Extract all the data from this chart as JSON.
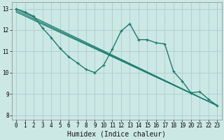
{
  "xlabel": "Humidex (Indice chaleur)",
  "bg_color": "#cce8e5",
  "grid_color": "#b0d0cd",
  "line_color": "#1a7a6e",
  "xlim": [
    -0.5,
    23.5
  ],
  "ylim": [
    7.8,
    13.3
  ],
  "xticks": [
    0,
    1,
    2,
    3,
    4,
    5,
    6,
    7,
    8,
    9,
    10,
    11,
    12,
    13,
    14,
    15,
    16,
    17,
    18,
    19,
    20,
    21,
    22,
    23
  ],
  "yticks": [
    8,
    9,
    10,
    11,
    12,
    13
  ],
  "wiggly": {
    "x": [
      0,
      1,
      2,
      3,
      4,
      5,
      6,
      7,
      8,
      9,
      10,
      11,
      12,
      13,
      14,
      15,
      16,
      17,
      18,
      19,
      20,
      21,
      22,
      23
    ],
    "y": [
      13.0,
      12.85,
      12.65,
      12.1,
      11.65,
      11.15,
      10.75,
      10.45,
      10.15,
      10.0,
      10.35,
      11.1,
      11.95,
      12.3,
      11.55,
      11.55,
      11.4,
      11.35,
      10.05,
      9.6,
      9.05,
      9.1,
      8.75,
      8.45
    ]
  },
  "smooth_lines": [
    {
      "x0": 0,
      "y0": 13.0,
      "x1": 23,
      "y1": 8.45
    },
    {
      "x0": 0,
      "y0": 12.92,
      "x1": 23,
      "y1": 8.45
    },
    {
      "x0": 0,
      "y0": 12.85,
      "x1": 23,
      "y1": 8.45
    }
  ]
}
